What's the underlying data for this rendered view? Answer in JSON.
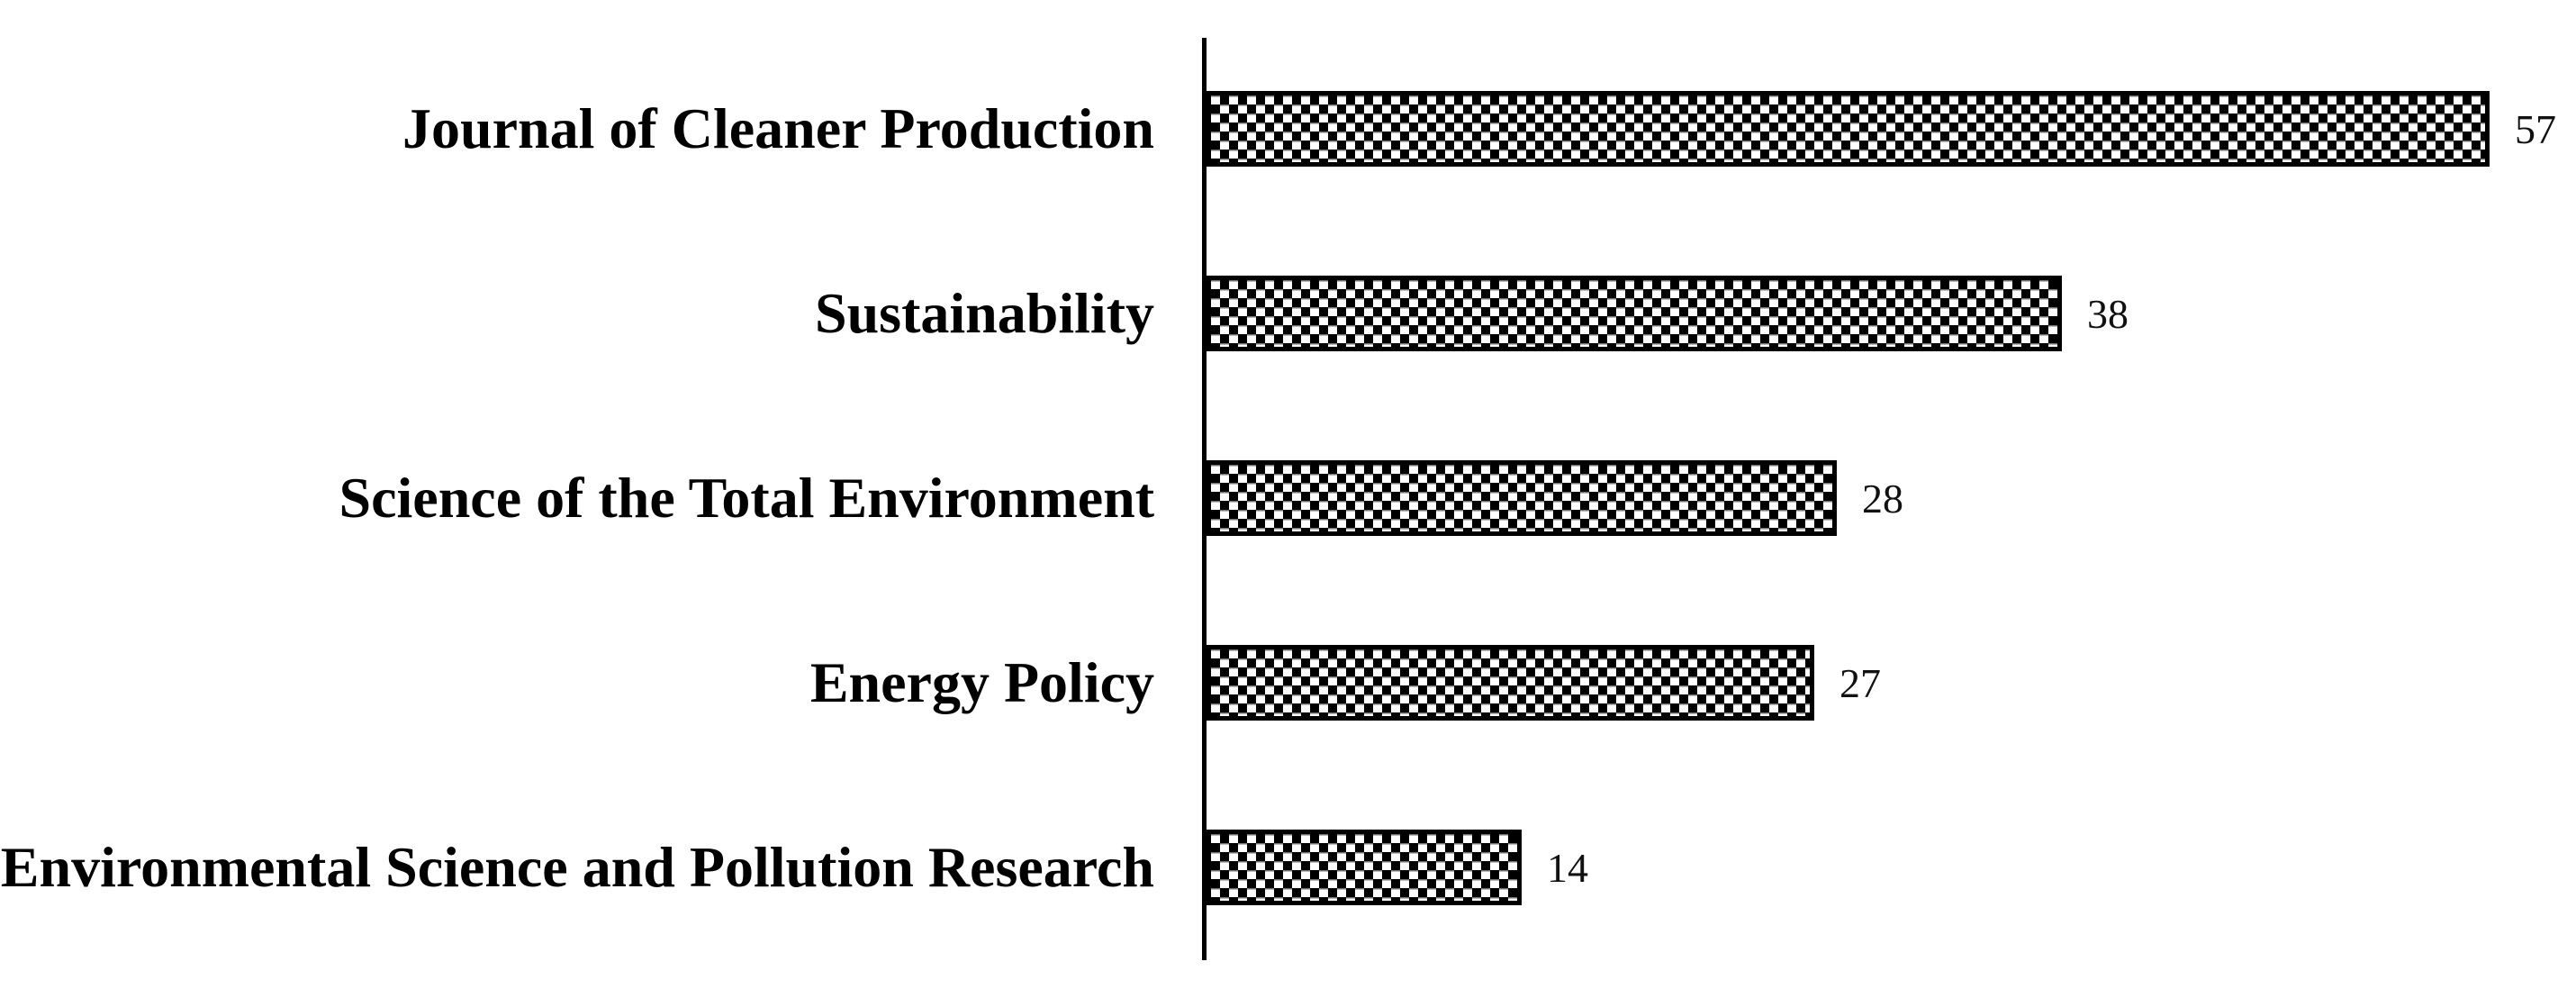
{
  "figure": {
    "background_color": "#ffffff",
    "axis_color": "#000000",
    "label_color": "#000000",
    "value_color": "#111111"
  },
  "chart_data": {
    "type": "bar",
    "orientation": "horizontal",
    "title": "",
    "xlabel": "",
    "ylabel": "",
    "categories": [
      "Journal of Cleaner Production",
      "Sustainability",
      "Science of the Total Environment",
      "Energy Policy",
      "Environmental Science and Pollution Research"
    ],
    "values": [
      57,
      38,
      28,
      27,
      14
    ],
    "value_labels": [
      "57",
      "38",
      "28",
      "27",
      "14"
    ],
    "xlim": [
      0,
      57
    ],
    "grid": false,
    "legend": false,
    "bar_style": {
      "fill_pattern": "checkerboard",
      "pattern_fg": "#000000",
      "pattern_bg": "#ffffff",
      "border_color": "#000000"
    }
  }
}
